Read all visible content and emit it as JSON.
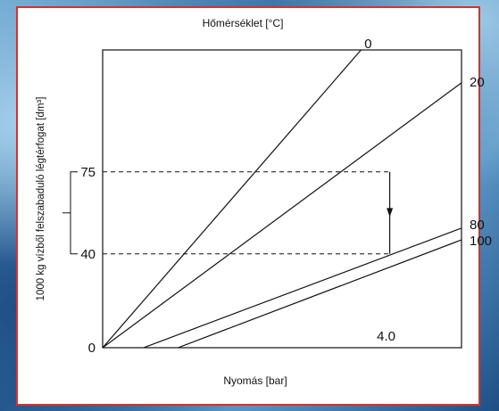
{
  "chart_data": {
    "type": "line",
    "title": "Hőmérséklet [°C]",
    "xlabel": "Nyomás [bar]",
    "ylabel": "1000 kg vízből felszabaduló légtérfogat [dm³]",
    "x_tick_labels": [
      {
        "x": 4.0,
        "label": "4.0"
      }
    ],
    "y_tick_labels": [
      {
        "y": 0,
        "label": "0"
      },
      {
        "y": 40,
        "label": "40"
      },
      {
        "y": 75,
        "label": "75"
      }
    ],
    "xlim": [
      0,
      5.0
    ],
    "ylim": [
      0,
      127
    ],
    "series": [
      {
        "name": "0",
        "points": [
          [
            0,
            0
          ],
          [
            3.6,
            127
          ]
        ]
      },
      {
        "name": "20",
        "points": [
          [
            0,
            0
          ],
          [
            5.0,
            113
          ]
        ]
      },
      {
        "name": "80",
        "points": [
          [
            0.57,
            0
          ],
          [
            5.0,
            51
          ]
        ]
      },
      {
        "name": "100",
        "points": [
          [
            1.05,
            0
          ],
          [
            5.0,
            46
          ]
        ]
      }
    ],
    "annotations": {
      "reference_lines_y": [
        75,
        40
      ],
      "arrow": {
        "x": 4.0,
        "from_y": 75,
        "to_y": 40
      },
      "bracket": {
        "from_y": 40,
        "to_y": 75
      }
    },
    "grid": false
  }
}
